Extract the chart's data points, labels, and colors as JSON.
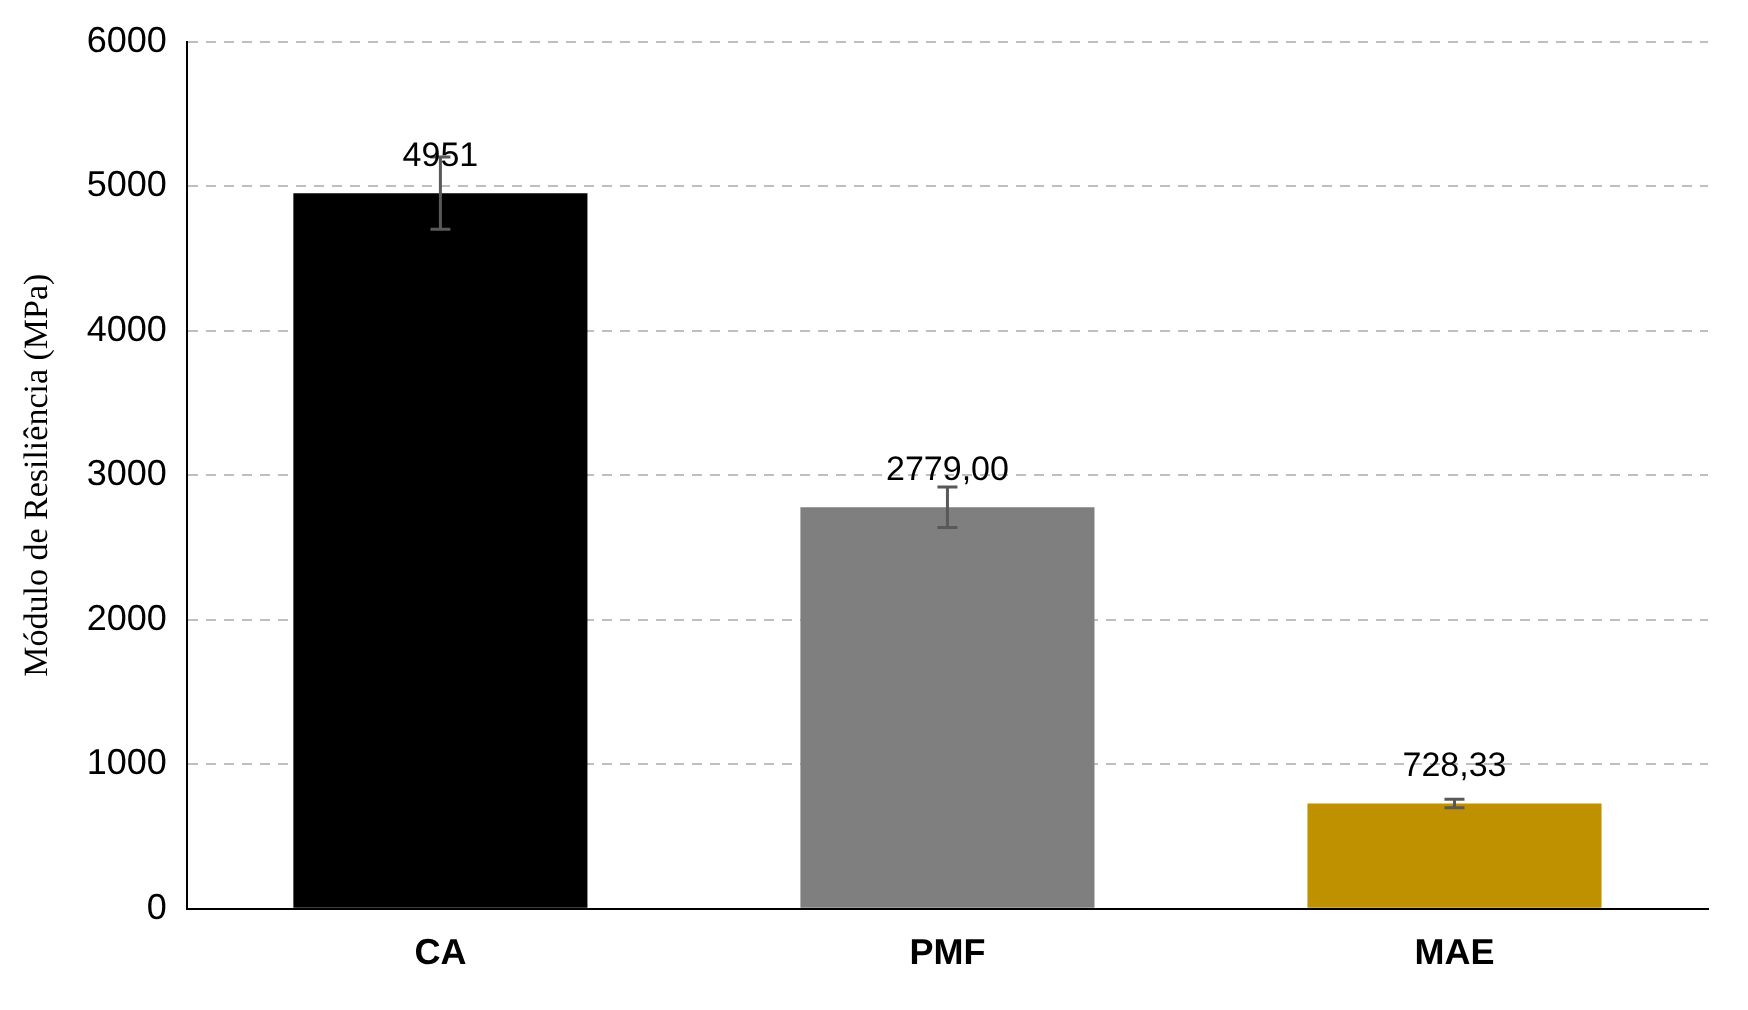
{
  "chart_data": {
    "type": "bar",
    "ylabel": "Módulo de Resiliência (MPa)",
    "categories": [
      "CA",
      "PMF",
      "MAE"
    ],
    "values": [
      4951,
      2779,
      728.33
    ],
    "colors": [
      "#000000",
      "#7f7f7f",
      "#bf9000"
    ],
    "errors": [
      250,
      140,
      30
    ],
    "value_labels": [
      "4951",
      "2779,00",
      "728,33"
    ],
    "ylim": [
      0,
      6000
    ],
    "yticks": [
      0,
      1000,
      2000,
      3000,
      4000,
      5000,
      6000
    ],
    "grid": "y",
    "legend": false
  }
}
